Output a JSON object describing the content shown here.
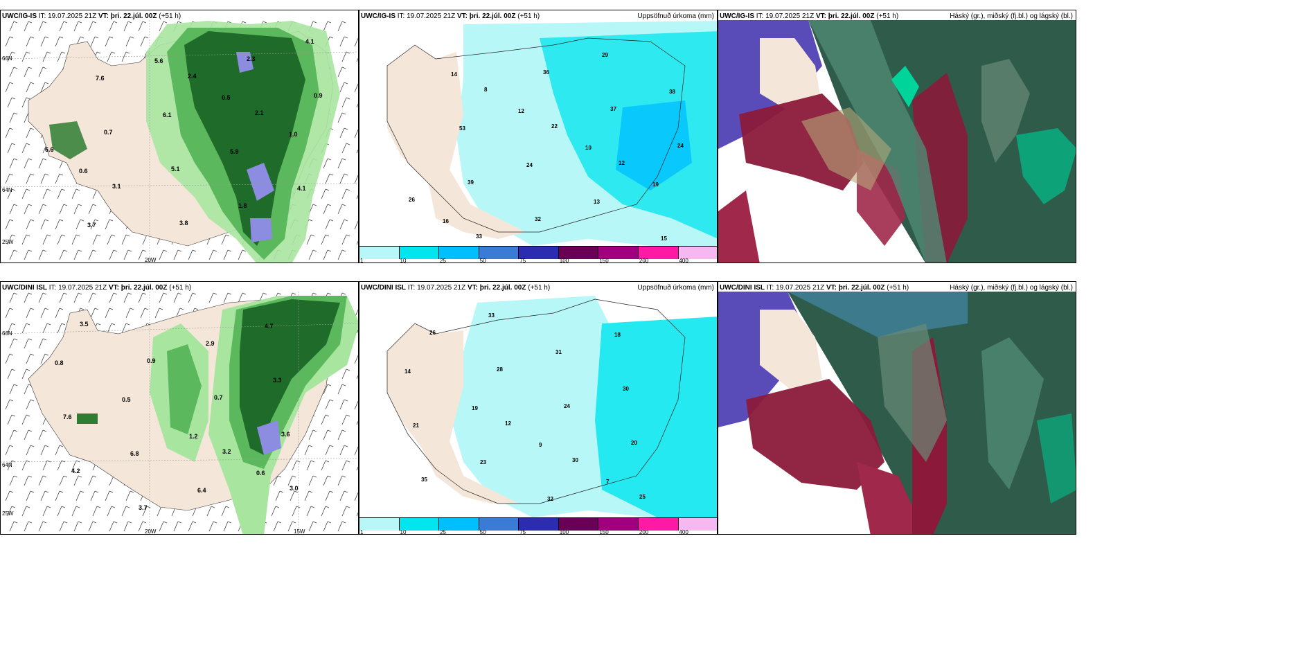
{
  "rows": [
    {
      "model": "UWC/IG-IS",
      "it_label": "IT:",
      "it_value": "19.07.2025 21Z",
      "vt_label": "VT:",
      "vt_value": "þri. 22.júl. 00Z",
      "lead": "(+51 h)"
    },
    {
      "model": "UWC/DINI ISL",
      "it_label": "IT:",
      "it_value": "19.07.2025 21Z",
      "vt_label": "VT:",
      "vt_value": "þri. 22.júl. 00Z",
      "lead": "(+51 h)"
    }
  ],
  "panels": {
    "precip_title": "Uppsöfnuð úrkoma (mm)",
    "cloud_title": "Háský (gr.), miðský (fj.bl.) og lágský (bl.)"
  },
  "grid_labels": {
    "lat_66": "66N",
    "lat_64": "64N",
    "lon_25w": "25W",
    "lon_20w": "20W",
    "lon_15w": "15W"
  },
  "colorbar": {
    "labels": [
      "1",
      "10",
      "25",
      "50",
      "75",
      "100",
      "150",
      "200",
      "400"
    ],
    "colors": [
      "#b8f7f7",
      "#00e5ee",
      "#00bfff",
      "#3a7bd5",
      "#2c2cb0",
      "#6a0055",
      "#a00080",
      "#ff1aa6",
      "#f5b8f0"
    ]
  },
  "top_left_values": [
    "2.4",
    "2.1",
    "6.6",
    "3.1",
    "3.8",
    "2.3",
    "0.9",
    "0.7",
    "5.1",
    "1.8",
    "4.1",
    "7.6",
    "6.1",
    "5.9",
    "4.1",
    "3.7",
    "5.6",
    "0.5",
    "1.0",
    "0.6"
  ],
  "bottom_left_values": [
    "3.2",
    "3.0",
    "3.5",
    "0.9",
    "0.7",
    "3.6",
    "4.2",
    "3.7",
    "2.9",
    "3.3",
    "7.6",
    "6.8",
    "6.4",
    "4.7",
    "0.8",
    "0.5",
    "1.2",
    "0.6"
  ],
  "top_mid_values": [
    "8",
    "22",
    "12",
    "26",
    "33",
    "36",
    "37",
    "24",
    "39",
    "32",
    "29",
    "38",
    "53",
    "24",
    "13",
    "15",
    "14",
    "12",
    "10",
    "19",
    "16"
  ],
  "bottom_mid_values": [
    "12",
    "30",
    "25",
    "26",
    "28",
    "24",
    "20",
    "35",
    "33",
    "31",
    "30",
    "21",
    "23",
    "32",
    "18",
    "14",
    "19",
    "9",
    "7"
  ]
}
